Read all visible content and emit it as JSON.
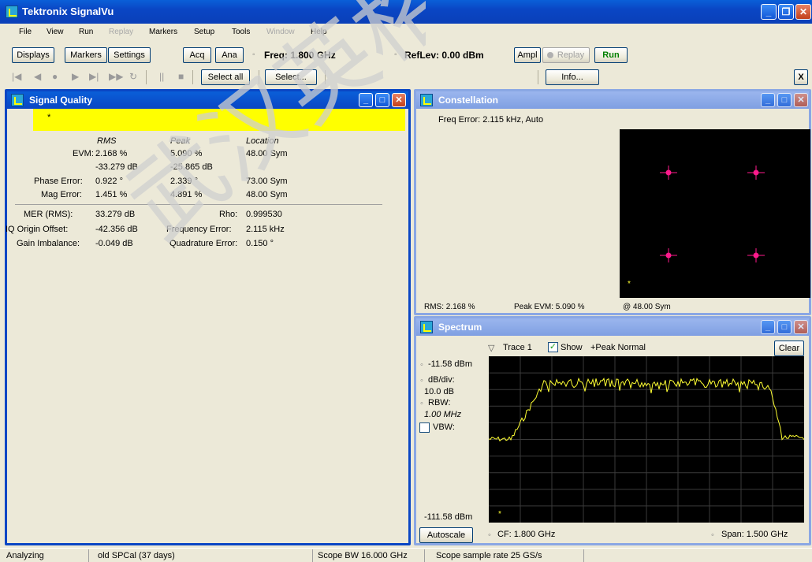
{
  "app": {
    "title": "Tektronix SignalVu"
  },
  "window_buttons": {
    "minimize": "_",
    "restore": "❐",
    "close": "✕"
  },
  "menu": [
    "File",
    "View",
    "Run",
    "Replay",
    "Markers",
    "Setup",
    "Tools",
    "Window",
    "Help"
  ],
  "toolbar": {
    "displays": "Displays",
    "markers": "Markers",
    "settings": "Settings",
    "acq": "Acq",
    "ana": "Ana",
    "freq": "Freq: 1.800 GHz",
    "reflev": "RefLev: 0.00 dBm",
    "ampl": "Ampl",
    "replay": "Replay",
    "run": "Run"
  },
  "toolbar2": {
    "select_all": "Select all",
    "select": "Select...",
    "info": "Info...",
    "x": "X"
  },
  "signal_quality": {
    "title": "Signal Quality",
    "marker": "*",
    "headers": {
      "rms": "RMS",
      "peak": "Peak",
      "location": "Location"
    },
    "evm": {
      "label": "EVM:",
      "rms": "2.168 %",
      "peak": "5.090 %",
      "location": "48.00 Sym",
      "rms_db": "-33.279 dB",
      "peak_db": "-25.865 dB"
    },
    "phase_error": {
      "label": "Phase Error:",
      "rms": "0.922 °",
      "peak": "2.339 °",
      "location": "73.00 Sym"
    },
    "mag_error": {
      "label": "Mag Error:",
      "rms": "1.451 %",
      "peak": "4.891 %",
      "location": "48.00 Sym"
    },
    "mer": {
      "label": "MER (RMS):",
      "value": "33.279 dB"
    },
    "rho": {
      "label": "Rho:",
      "value": "0.999530"
    },
    "iq_offset": {
      "label": "IQ Origin Offset:",
      "value": "-42.356 dB"
    },
    "freq_error": {
      "label": "Frequency Error:",
      "value": "2.115 kHz"
    },
    "gain_imbalance": {
      "label": "Gain Imbalance:",
      "value": "-0.049 dB"
    },
    "quad_error": {
      "label": "Quadrature Error:",
      "value": "0.150 °"
    }
  },
  "constellation": {
    "title": "Constellation",
    "freq_error": "Freq Error: 2.115 kHz, Auto",
    "rms": "RMS:  2.168 %",
    "peak_evm": "Peak EVM:   5.090 %",
    "at": "@  48.00 Sym",
    "marker": "*",
    "point_color": "#ff1a8c"
  },
  "spectrum": {
    "title": "Spectrum",
    "trace": "Trace 1",
    "show": "Show",
    "detector": "+Peak Normal",
    "clear": "Clear",
    "ref": "-11.58 dBm",
    "dbdiv_label": "dB/div:",
    "dbdiv": "10.0 dB",
    "rbw_label": "RBW:",
    "rbw": "1.00 MHz",
    "vbw": "VBW:",
    "bottom": "-111.58 dBm",
    "autoscale": "Autoscale",
    "cf": "CF: 1.800 GHz",
    "span": "Span: 1.500 GHz",
    "marker": "*",
    "trace_color": "#ffff33"
  },
  "status": {
    "state": "Analyzing",
    "cal": "old SPCal (37 days)",
    "scope_bw": "Scope BW 16.000 GHz",
    "sample_rate": "Scope sample rate 25 GS/s"
  },
  "watermark": {
    "text": "武汉英格",
    "color": "#cfcfcf"
  }
}
